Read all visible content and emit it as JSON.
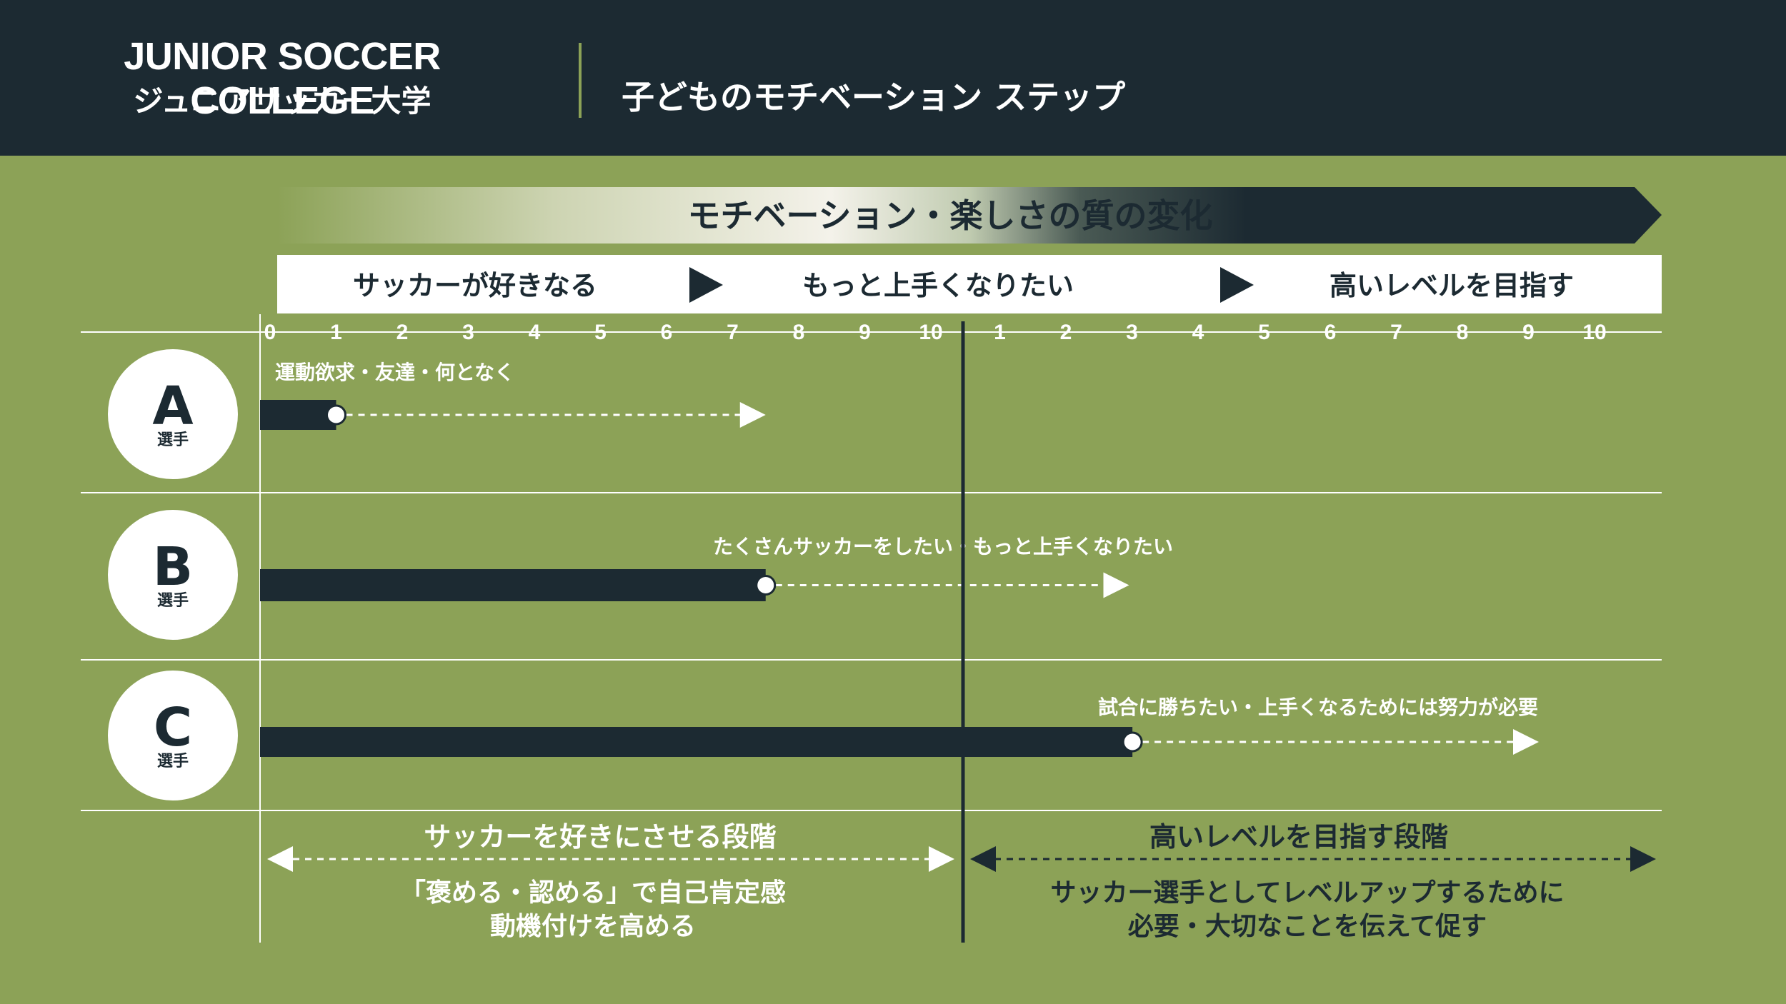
{
  "header": {
    "brand_en": "JUNIOR SOCCER COLLEGE",
    "brand_jp": "ジュニアサッカー大学",
    "title": "子どものモチベーション ステップ"
  },
  "banner": {
    "text": "モチベーション・楽しさの質の変化"
  },
  "stages": {
    "stage1": "サッカーが好きなる",
    "stage2": "もっと上手くなりたい",
    "stage3": "高いレベルを目指す"
  },
  "scale": {
    "first_half": [
      "0",
      "1",
      "2",
      "3",
      "4",
      "5",
      "6",
      "7",
      "8",
      "9",
      "10"
    ],
    "second_half": [
      "1",
      "2",
      "3",
      "4",
      "5",
      "6",
      "7",
      "8",
      "9",
      "10"
    ]
  },
  "players": [
    {
      "letter": "A",
      "suffix": "選手",
      "motivation": "運動欲求・友達・何となく",
      "current_level": 1,
      "target_level": 7.5
    },
    {
      "letter": "B",
      "suffix": "選手",
      "motivation": "たくさんサッカーをしたい・もっと上手くなりたい",
      "current_level": 7.5,
      "target_level": 13
    },
    {
      "letter": "C",
      "suffix": "選手",
      "motivation": "試合に勝ちたい・上手くなるためには努力が必要",
      "current_level": 13.05,
      "target_level": 19.2
    }
  ],
  "phases": {
    "left": {
      "title": "サッカーを好きにさせる段階",
      "line1": "「褒める・認める」で自己肯定感",
      "line2": "動機付けを高める"
    },
    "right": {
      "title": "高いレベルを目指す段階",
      "line1": "サッカー選手としてレベルアップするために",
      "line2": "必要・大切なことを伝えて促す"
    }
  },
  "colors": {
    "background": "#8ca257",
    "dark": "#1c2a32",
    "white": "#ffffff",
    "header_divider": "#8ca257"
  }
}
